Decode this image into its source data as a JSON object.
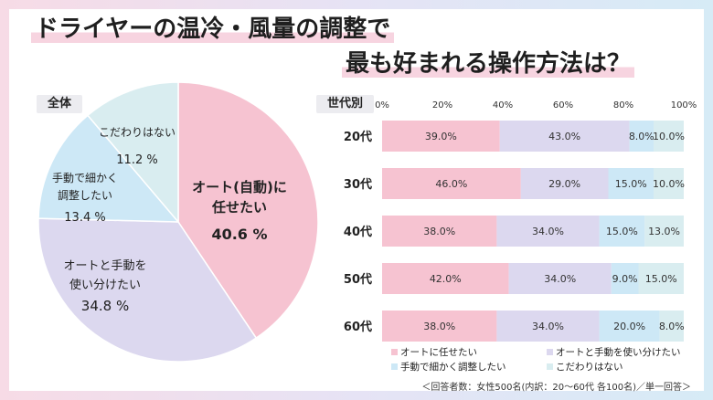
{
  "header": {
    "title_line1": "ドライヤーの温冷・風量の調整で",
    "title_line2": "最も好まれる操作方法は？"
  },
  "pie_label": "全体",
  "bar_label": "世代別",
  "footnote": "＜回答者数：女性500名(内訳：20～60代 各100名)／単一回答＞",
  "colors": {
    "auto": "#f6c3d1",
    "both": "#dcd8ef",
    "manual": "#cde8f6",
    "none": "#d9edf0"
  },
  "chart_data": [
    {
      "type": "pie",
      "title": "全体",
      "slices": [
        {
          "label_lines": [
            "オート(自動)に",
            "任せたい"
          ],
          "value": 40.6,
          "value_text": "40.6 %",
          "color": "#f6c3d1"
        },
        {
          "label_lines": [
            "オートと手動を",
            "使い分けたい"
          ],
          "value": 34.8,
          "value_text": "34.8 %",
          "color": "#dcd8ef"
        },
        {
          "label_lines": [
            "手動で細かく",
            "調整したい"
          ],
          "value": 13.4,
          "value_text": "13.4 %",
          "color": "#cde8f6"
        },
        {
          "label_lines": [
            "こだわりはない"
          ],
          "value": 11.2,
          "value_text": "11.2 %",
          "color": "#d9edf0"
        }
      ]
    },
    {
      "type": "bar",
      "orientation": "horizontal",
      "stacked": true,
      "title": "世代別",
      "categories": [
        "20代",
        "30代",
        "40代",
        "50代",
        "60代"
      ],
      "x_ticks": [
        "0%",
        "20%",
        "40%",
        "60%",
        "80%",
        "100%"
      ],
      "xlim": [
        0,
        100
      ],
      "series": [
        {
          "name": "オートに任せたい",
          "color": "#f6c3d1",
          "values": [
            39.0,
            46.0,
            38.0,
            42.0,
            38.0
          ],
          "labels": [
            "39.0%",
            "46.0%",
            "38.0%",
            "42.0%",
            "38.0%"
          ]
        },
        {
          "name": "オートと手動を使い分けたい",
          "color": "#dcd8ef",
          "values": [
            43.0,
            29.0,
            34.0,
            34.0,
            34.0
          ],
          "labels": [
            "43.0%",
            "29.0%",
            "34.0%",
            "34.0%",
            "34.0%"
          ]
        },
        {
          "name": "手動で細かく調整したい",
          "color": "#cde8f6",
          "values": [
            8.0,
            15.0,
            15.0,
            9.0,
            20.0
          ],
          "labels": [
            "8.0%",
            "15.0%",
            "15.0%",
            "9.0%",
            "20.0%"
          ]
        },
        {
          "name": "こだわりはない",
          "color": "#d9edf0",
          "values": [
            10.0,
            10.0,
            13.0,
            15.0,
            8.0
          ],
          "labels": [
            "10.0%",
            "10.0%",
            "13.0%",
            "15.0%",
            "8.0%"
          ]
        }
      ],
      "legend_position": "bottom"
    }
  ]
}
